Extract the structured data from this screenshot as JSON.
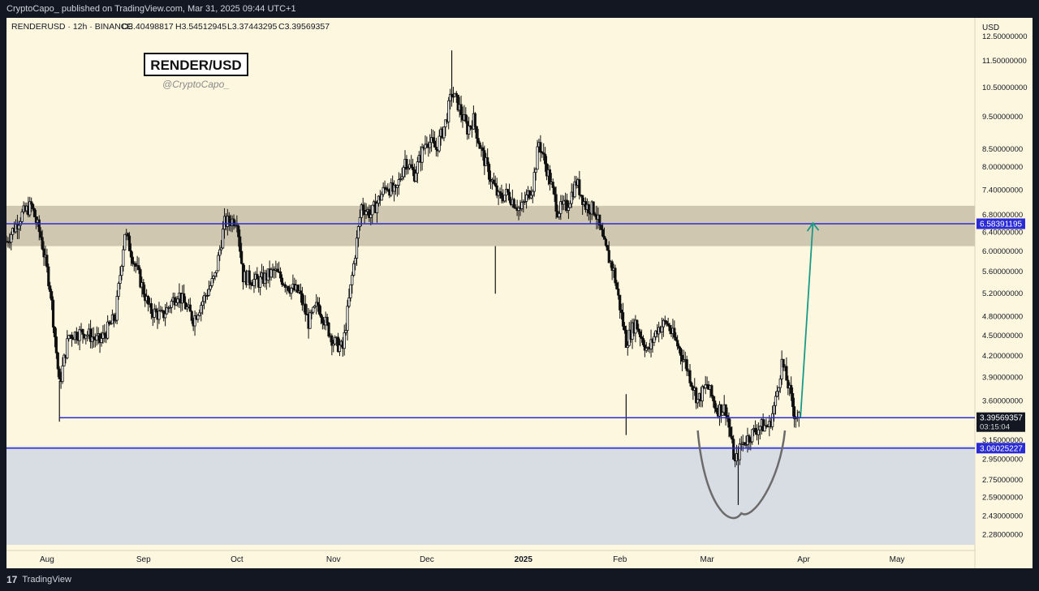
{
  "publish_line": "CryptoCapo_ published on TradingView.com, Mar 31, 2025 09:44 UTC+1",
  "footer": {
    "logo_glyph": "17",
    "brand": "TradingView"
  },
  "symbol_header": {
    "symbol": "RENDERUSD · 12h · BINANCE",
    "open": "O3.40498817",
    "high": "H3.54512945",
    "low": "L3.37443295",
    "close": "C3.39569357"
  },
  "watermark": {
    "title": "RENDER/USD",
    "handle": "@CryptoCapo_"
  },
  "axis": {
    "currency": "USD",
    "price_labels": [
      "12.50000000",
      "11.50000000",
      "10.50000000",
      "9.50000000",
      "8.50000000",
      "8.00000000",
      "7.40000000",
      "6.80000000",
      "6.40000000",
      "6.00000000",
      "5.60000000",
      "5.20000000",
      "4.80000000",
      "4.50000000",
      "4.20000000",
      "3.90000000",
      "3.60000000",
      "3.15000000",
      "2.95000000",
      "2.75000000",
      "2.59000000",
      "2.43000000",
      "2.28000000"
    ],
    "time_labels": [
      "Aug",
      "Sep",
      "Oct",
      "Nov",
      "Dec",
      "2025",
      "Feb",
      "Mar",
      "Apr",
      "May"
    ],
    "current_price_label": "3.39569357",
    "countdown_label": "03:15:04",
    "resistance_label": "6.58391195",
    "support_label": "3.06025227"
  },
  "colors": {
    "chart_bg": "#fdf7df",
    "frame_bg": "#131722",
    "axis_text": "#131722",
    "line_blue": "#2b2bd6",
    "resistance_zone": "#d0c7b0",
    "support_zone": "#d8dce3",
    "target_arrow": "#1a9a86",
    "candle": "#111111",
    "cup_curve": "#6b6b6b"
  },
  "chart_data": {
    "type": "candlestick",
    "symbol": "RENDERUSD",
    "interval": "12h",
    "exchange": "BINANCE",
    "y_scale": "log",
    "ylim": [
      2.2,
      13.3
    ],
    "x_range": [
      "2024-07-19",
      "2025-05-26"
    ],
    "last_bar": {
      "open": 3.40498817,
      "high": 3.54512945,
      "low": 3.37443295,
      "close": 3.39569357
    },
    "close_path": [
      [
        "2024-07-19",
        6.2
      ],
      [
        "2024-07-24",
        6.8
      ],
      [
        "2024-07-27",
        7.0
      ],
      [
        "2024-07-30",
        6.3
      ],
      [
        "2024-08-02",
        5.3
      ],
      [
        "2024-08-05",
        3.8
      ],
      [
        "2024-08-08",
        4.5
      ],
      [
        "2024-08-13",
        4.55
      ],
      [
        "2024-08-18",
        4.4
      ],
      [
        "2024-08-23",
        4.8
      ],
      [
        "2024-08-26",
        6.4
      ],
      [
        "2024-08-30",
        5.6
      ],
      [
        "2024-09-03",
        4.9
      ],
      [
        "2024-09-07",
        4.8
      ],
      [
        "2024-09-12",
        5.2
      ],
      [
        "2024-09-17",
        4.75
      ],
      [
        "2024-09-24",
        5.5
      ],
      [
        "2024-09-27",
        6.6
      ],
      [
        "2024-10-01",
        6.7
      ],
      [
        "2024-10-03",
        5.5
      ],
      [
        "2024-10-08",
        5.4
      ],
      [
        "2024-10-13",
        5.6
      ],
      [
        "2024-10-18",
        5.3
      ],
      [
        "2024-10-21",
        5.2
      ],
      [
        "2024-10-24",
        4.7
      ],
      [
        "2024-10-27",
        5.0
      ],
      [
        "2024-11-01",
        4.4
      ],
      [
        "2024-11-04",
        4.3
      ],
      [
        "2024-11-07",
        5.5
      ],
      [
        "2024-11-10",
        7.0
      ],
      [
        "2024-11-13",
        6.8
      ],
      [
        "2024-11-18",
        7.5
      ],
      [
        "2024-11-21",
        7.3
      ],
      [
        "2024-11-24",
        8.2
      ],
      [
        "2024-11-27",
        7.8
      ],
      [
        "2024-12-01",
        8.8
      ],
      [
        "2024-12-04",
        8.5
      ],
      [
        "2024-12-07",
        9.3
      ],
      [
        "2024-12-09",
        10.3
      ],
      [
        "2024-12-11",
        9.9
      ],
      [
        "2024-12-14",
        9.1
      ],
      [
        "2024-12-16",
        9.4
      ],
      [
        "2024-12-18",
        8.6
      ],
      [
        "2024-12-21",
        7.8
      ],
      [
        "2024-12-24",
        7.2
      ],
      [
        "2024-12-27",
        7.3
      ],
      [
        "2024-12-31",
        6.9
      ],
      [
        "2025-01-04",
        7.5
      ],
      [
        "2025-01-06",
        8.7
      ],
      [
        "2025-01-09",
        7.8
      ],
      [
        "2025-01-12",
        6.9
      ],
      [
        "2025-01-15",
        7.0
      ],
      [
        "2025-01-18",
        7.6
      ],
      [
        "2025-01-21",
        7.0
      ],
      [
        "2025-01-24",
        6.9
      ],
      [
        "2025-01-27",
        6.1
      ],
      [
        "2025-01-30",
        5.6
      ],
      [
        "2025-02-03",
        4.4
      ],
      [
        "2025-02-06",
        4.7
      ],
      [
        "2025-02-10",
        4.25
      ],
      [
        "2025-02-13",
        4.6
      ],
      [
        "2025-02-16",
        4.7
      ],
      [
        "2025-02-19",
        4.4
      ],
      [
        "2025-02-22",
        4.1
      ],
      [
        "2025-02-26",
        3.6
      ],
      [
        "2025-03-01",
        3.8
      ],
      [
        "2025-03-04",
        3.5
      ],
      [
        "2025-03-07",
        3.5
      ],
      [
        "2025-03-10",
        2.9
      ],
      [
        "2025-03-12",
        3.1
      ],
      [
        "2025-03-15",
        3.2
      ],
      [
        "2025-03-18",
        3.3
      ],
      [
        "2025-03-21",
        3.3
      ],
      [
        "2025-03-23",
        3.6
      ],
      [
        "2025-03-25",
        4.1
      ],
      [
        "2025-03-27",
        3.8
      ],
      [
        "2025-03-29",
        3.45
      ],
      [
        "2025-03-31",
        3.39569357
      ]
    ],
    "horizontal_lines": [
      {
        "price": 6.58391195
      },
      {
        "price": 3.39569357,
        "from": "2024-08-05"
      },
      {
        "price": 3.06025227
      }
    ],
    "zones": [
      {
        "from": 6.1,
        "to": 7.0,
        "color": "#d0c7b0"
      },
      {
        "from": 2.25,
        "to": 3.08,
        "color": "#d8dce3"
      }
    ],
    "annotations": [
      {
        "type": "arrow",
        "from": [
          "2025-03-31",
          3.4
        ],
        "to": [
          "2025-04-04",
          6.6
        ],
        "color": "#1a9a86"
      },
      {
        "type": "cup_curve",
        "from": "2025-02-26",
        "to": "2025-03-26",
        "bottom": 2.45
      }
    ]
  }
}
